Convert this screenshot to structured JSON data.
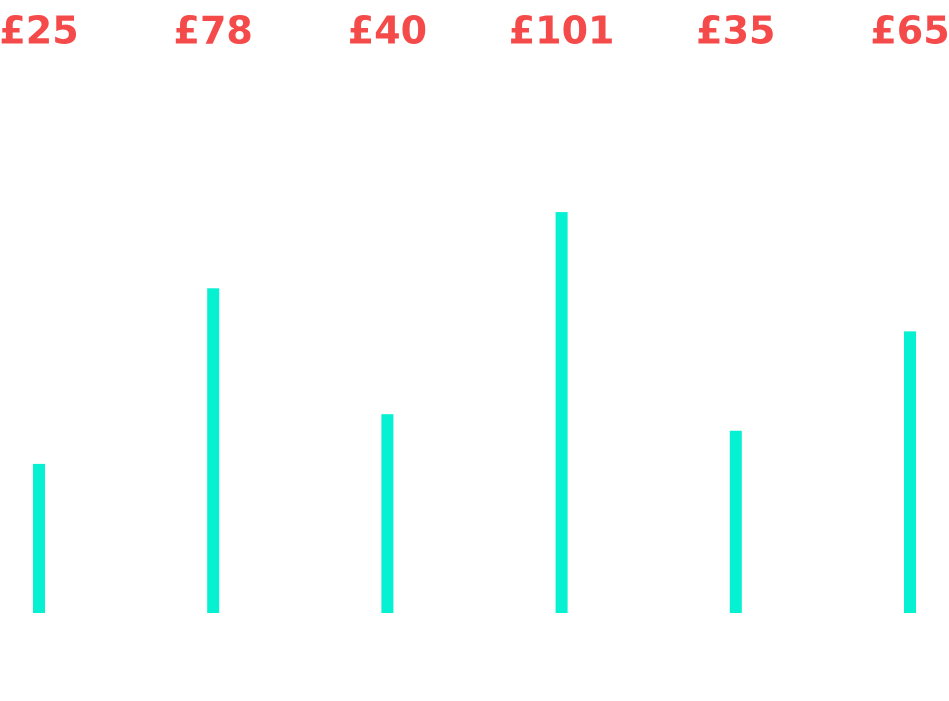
{
  "chart_data": {
    "type": "bar",
    "values": [
      25,
      78,
      40,
      101,
      35,
      65
    ],
    "value_labels": [
      "£25",
      "£78",
      "£40",
      "£101",
      "£35",
      "£65"
    ],
    "color": "#06f0d2",
    "label_color": "#f54a4a",
    "ylim": [
      -20,
      130
    ]
  }
}
